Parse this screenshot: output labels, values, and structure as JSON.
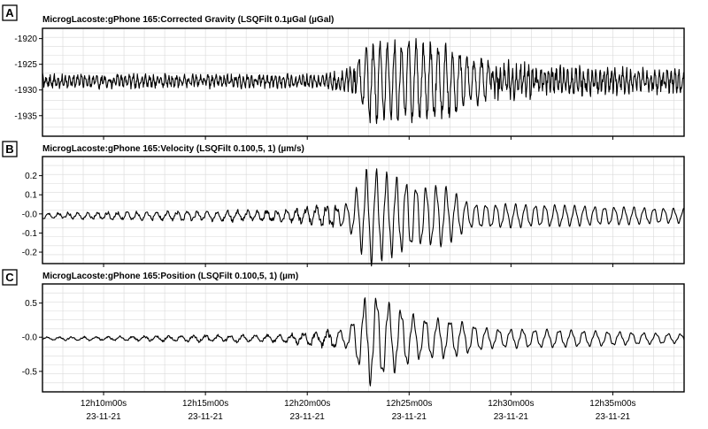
{
  "chart_data": [
    {
      "type": "line",
      "panel_label": "A",
      "title": "MicrogLacoste:gPhone 165:Corrected Gravity (LSQFilt 0.1µGal (µGal)",
      "ylim": [
        -1939,
        -1918
      ],
      "yticks": [
        "-1920",
        "-1925",
        "-1930",
        "-1935"
      ],
      "ytick_values": [
        -1920,
        -1925,
        -1930,
        -1935
      ],
      "grid": true,
      "series": [
        {
          "x_range": [
            "2021-11-23 12:07:00",
            "2021-11-23 12:38:30"
          ],
          "baseline": -1928.3,
          "description_points": [
            {
              "x": "12:07:00",
              "amplitude": 1.6
            },
            {
              "x": "12:21:00",
              "amplitude": 1.6
            },
            {
              "x": "12:22:20",
              "amplitude": 3.5
            },
            {
              "x": "12:23:00",
              "amplitude": 9.0
            },
            {
              "x": "12:25:00",
              "amplitude": 8.5
            },
            {
              "x": "12:26:40",
              "amplitude": 8.0
            },
            {
              "x": "12:28:00",
              "amplitude": 5.0
            },
            {
              "x": "12:32:00",
              "amplitude": 3.5
            },
            {
              "x": "12:38:30",
              "amplitude": 2.5
            }
          ]
        }
      ]
    },
    {
      "type": "line",
      "panel_label": "B",
      "title": "MicrogLacoste:gPhone 165:Velocity (LSQFilt 0.100,5, 1) (µm/s)",
      "ylim": [
        -0.26,
        0.3
      ],
      "yticks": [
        "0.2",
        "0.1",
        "-0.0",
        "-0.1",
        "-0.2"
      ],
      "ytick_values": [
        0.2,
        0.1,
        0.0,
        -0.1,
        -0.2
      ],
      "grid": true,
      "series": [
        {
          "x_range": [
            "2021-11-23 12:07:00",
            "2021-11-23 12:38:30"
          ],
          "baseline": -0.01,
          "description_points": [
            {
              "x": "12:07:00",
              "amplitude": 0.015
            },
            {
              "x": "12:19:00",
              "amplitude": 0.03
            },
            {
              "x": "12:22:00",
              "amplitude": 0.07
            },
            {
              "x": "12:23:00",
              "amplitude": 0.27
            },
            {
              "x": "12:25:30",
              "amplitude": 0.17
            },
            {
              "x": "12:26:40",
              "amplitude": 0.17
            },
            {
              "x": "12:28:00",
              "amplitude": 0.07
            },
            {
              "x": "12:32:00",
              "amplitude": 0.06
            },
            {
              "x": "12:38:30",
              "amplitude": 0.04
            }
          ]
        }
      ]
    },
    {
      "type": "line",
      "panel_label": "C",
      "title": "MicrogLacoste:gPhone 165:Position (LSQFilt 0.100,5, 1) (µm)",
      "ylim": [
        -0.8,
        0.78
      ],
      "yticks": [
        "0.5",
        "-0.0",
        "-0.5"
      ],
      "ytick_values": [
        0.5,
        0.0,
        -0.5
      ],
      "grid": true,
      "series": [
        {
          "x_range": [
            "2021-11-23 12:07:00",
            "2021-11-23 12:38:30"
          ],
          "baseline": -0.02,
          "description_points": [
            {
              "x": "12:07:00",
              "amplitude": 0.02
            },
            {
              "x": "12:19:00",
              "amplitude": 0.06
            },
            {
              "x": "12:22:00",
              "amplitude": 0.15
            },
            {
              "x": "12:23:00",
              "amplitude": 0.72
            },
            {
              "x": "12:25:30",
              "amplitude": 0.32
            },
            {
              "x": "12:27:00",
              "amplitude": 0.3
            },
            {
              "x": "12:29:00",
              "amplitude": 0.15
            },
            {
              "x": "12:32:00",
              "amplitude": 0.14
            },
            {
              "x": "12:38:30",
              "amplitude": 0.07
            }
          ]
        }
      ]
    }
  ],
  "x_axis": {
    "range": [
      "12:07:00",
      "12:38:30"
    ],
    "ticks": [
      {
        "time": "12:10:00",
        "label": "12h10m00s",
        "date": "23-11-21"
      },
      {
        "time": "12:15:00",
        "label": "12h15m00s",
        "date": "23-11-21"
      },
      {
        "time": "12:20:00",
        "label": "12h20m00s",
        "date": "23-11-21"
      },
      {
        "time": "12:25:00",
        "label": "12h25m00s",
        "date": "23-11-21"
      },
      {
        "time": "12:30:00",
        "label": "12h30m00s",
        "date": "23-11-21"
      },
      {
        "time": "12:35:00",
        "label": "12h35m00s",
        "date": "23-11-21"
      }
    ]
  },
  "colors": {
    "line": "#000000",
    "grid": "#d9d9d9",
    "frame": "#000000",
    "background": "#ffffff"
  }
}
